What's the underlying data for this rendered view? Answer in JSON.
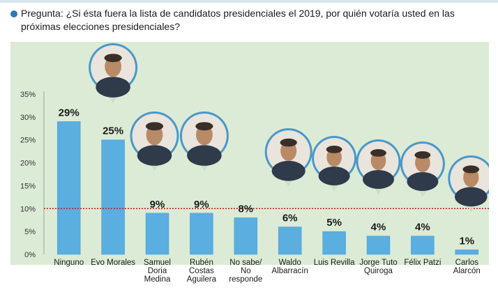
{
  "question": "Pregunta: ¿Si ésta fuera la lista de candidatos presidenciales el 2019, por quién votaría usted en las próximas elecciones presidenciales?",
  "colors": {
    "panel": "#dcebd6",
    "bar": "#5aaee0",
    "bar_edge": "#4a9cd0",
    "reference": "#cc1111",
    "photo_ring": "#4a98c8",
    "text": "#1b1b1b"
  },
  "chart_data": {
    "type": "bar",
    "title": "",
    "xlabel": "",
    "ylabel": "",
    "ylim": [
      0,
      35
    ],
    "yticks": [
      "0%",
      "5%",
      "10%",
      "15%",
      "20%",
      "25%",
      "30%",
      "35%"
    ],
    "reference_line": 10,
    "grid": false,
    "legend": "none",
    "categories": [
      [
        "Ninguno"
      ],
      [
        "Evo Morales"
      ],
      [
        "Samuel",
        "Doria",
        "Medina"
      ],
      [
        "Rubén",
        "Costas",
        "Aguilera"
      ],
      [
        "No sabe/",
        "No",
        "responde"
      ],
      [
        "Waldo",
        "Albarracín"
      ],
      [
        "Luis Revilla"
      ],
      [
        "Jorge Tuto",
        "Quiroga"
      ],
      [
        "Félix Patzi"
      ],
      [
        "Carlos",
        "Alarcón"
      ]
    ],
    "values": [
      29,
      25,
      9,
      9,
      8,
      6,
      5,
      4,
      4,
      1
    ],
    "value_labels": [
      "29%",
      "25%",
      "9%",
      "9%",
      "8%",
      "6%",
      "5%",
      "4%",
      "4%",
      "1%"
    ],
    "photos": [
      {
        "index": 1,
        "name": "evo-morales-photo"
      },
      {
        "index": 2,
        "name": "samuel-doria-medina-photo"
      },
      {
        "index": 3,
        "name": "ruben-costas-photo"
      },
      {
        "index": 5,
        "name": "waldo-albarracin-photo"
      },
      {
        "index": 6,
        "name": "luis-revilla-photo"
      },
      {
        "index": 7,
        "name": "jorge-quiroga-photo"
      },
      {
        "index": 8,
        "name": "felix-patzi-photo"
      },
      {
        "index": 9,
        "name": "carlos-alarcon-photo"
      }
    ]
  }
}
